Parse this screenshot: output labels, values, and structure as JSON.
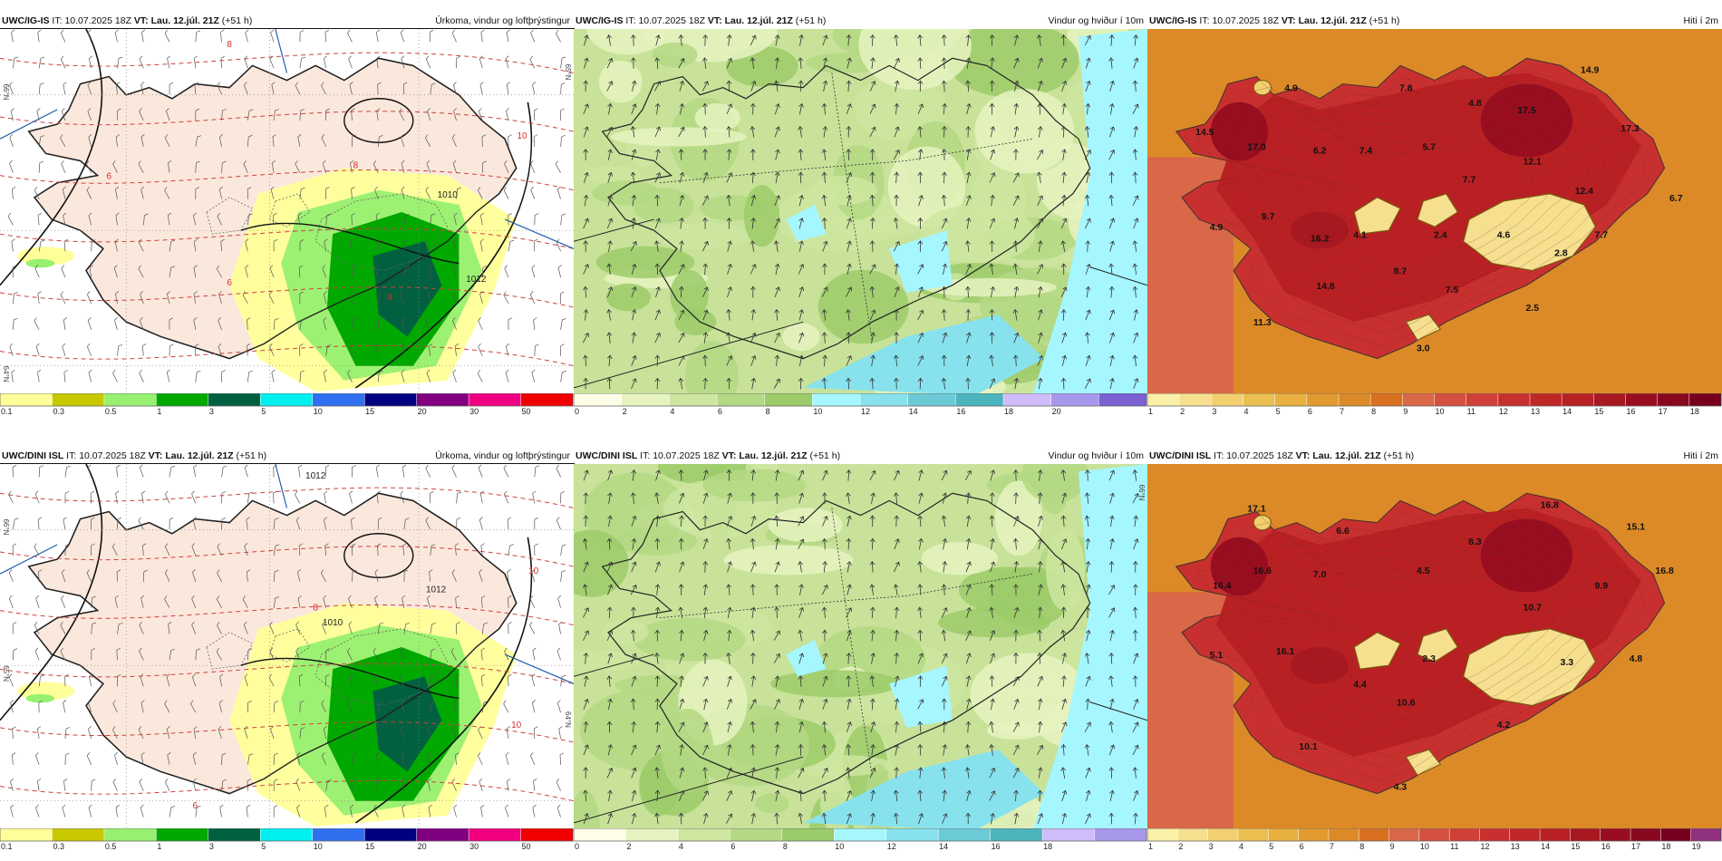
{
  "panels": [
    {
      "id": "p1",
      "source": "UWC/IG-IS",
      "it_label": "IT:",
      "it_value": "10.07.2025 18Z",
      "vt_label": "VT: Lau. 12.júl. 21Z",
      "lead": "(+51 h)",
      "title_right": "Úrkoma, vindur og loftþrýstingur",
      "kind": "precip",
      "colorbar": {
        "colors": [
          "#ffff99",
          "#c8c800",
          "#98f070",
          "#00a800",
          "#006040",
          "#00f0f0",
          "#3070f0",
          "#000080",
          "#800080",
          "#f00080",
          "#f00000"
        ],
        "ticks": [
          "0.1",
          "0.3",
          "0.5",
          "1",
          "3",
          "5",
          "10",
          "15",
          "20",
          "30",
          "50"
        ]
      },
      "map_labels": [
        {
          "t": "8",
          "c": "#d03030"
        },
        {
          "t": "10",
          "c": "#d03030"
        },
        {
          "t": "8",
          "c": "#d03030"
        },
        {
          "t": "6",
          "c": "#d03030"
        },
        {
          "t": "6",
          "c": "#d03030"
        },
        {
          "t": "8",
          "c": "#d03030"
        },
        {
          "t": "1012",
          "c": "#222"
        },
        {
          "t": "1010",
          "c": "#222"
        },
        {
          "t": "66°N",
          "c": "#444"
        },
        {
          "t": "64°N",
          "c": "#444"
        },
        {
          "t": "65°N",
          "c": "#444"
        }
      ]
    },
    {
      "id": "p2",
      "source": "UWC/IG-IS",
      "it_label": "IT:",
      "it_value": "10.07.2025 18Z",
      "vt_label": "VT: Lau. 12.júl. 21Z",
      "lead": "(+51 h)",
      "title_right": "Vindur og hviður í 10m",
      "kind": "wind",
      "colorbar": {
        "colors": [
          "#fdfde8",
          "#e6f3c0",
          "#cde6a0",
          "#b4d884",
          "#9ccb6a",
          "#a6f6ff",
          "#88e2ee",
          "#6ccad6",
          "#4cb4bc",
          "#d0bcfa",
          "#a898ec",
          "#7a60d0"
        ],
        "ticks": [
          "0",
          "2",
          "4",
          "6",
          "8",
          "10",
          "12",
          "14",
          "16",
          "18",
          "20"
        ]
      },
      "map_labels": []
    },
    {
      "id": "p3",
      "source": "UWC/IG-IS",
      "it_label": "IT:",
      "it_value": "10.07.2025 18Z",
      "vt_label": "VT: Lau. 12.júl. 21Z",
      "lead": "(+51 h)",
      "title_right": "Hiti í 2m",
      "kind": "temp",
      "colorbar": {
        "colors": [
          "#fbf0a8",
          "#f6e090",
          "#f2d070",
          "#ecc050",
          "#e8b040",
          "#e09a30",
          "#dc8a28",
          "#d87020",
          "#d86848",
          "#d45040",
          "#d04038",
          "#c83030",
          "#c02828",
          "#b82024",
          "#a81820",
          "#980e20",
          "#880820",
          "#78001e"
        ],
        "ticks": [
          "1",
          "2",
          "3",
          "4",
          "5",
          "6",
          "7",
          "8",
          "9",
          "10",
          "11",
          "12",
          "13",
          "14",
          "15",
          "16",
          "17",
          "18"
        ]
      },
      "map_labels": [
        {
          "t": "4.9"
        },
        {
          "t": "7.8"
        },
        {
          "t": "4.8"
        },
        {
          "t": "14.9"
        },
        {
          "t": "14.5"
        },
        {
          "t": "17.0"
        },
        {
          "t": "6.2"
        },
        {
          "t": "7.4"
        },
        {
          "t": "5.7"
        },
        {
          "t": "17.5"
        },
        {
          "t": "17.3"
        },
        {
          "t": "12.1"
        },
        {
          "t": "7.7"
        },
        {
          "t": "12.4"
        },
        {
          "t": "6.7"
        },
        {
          "t": "9.7"
        },
        {
          "t": "4.9"
        },
        {
          "t": "16.2"
        },
        {
          "t": "4.1"
        },
        {
          "t": "2.4"
        },
        {
          "t": "4.6"
        },
        {
          "t": "7.7"
        },
        {
          "t": "2.8"
        },
        {
          "t": "8.7"
        },
        {
          "t": "14.8"
        },
        {
          "t": "7.5"
        },
        {
          "t": "2.5"
        },
        {
          "t": "11.3"
        },
        {
          "t": "3.0"
        }
      ]
    },
    {
      "id": "p4",
      "source": "UWC/DINI ISL",
      "it_label": "IT:",
      "it_value": "10.07.2025 18Z",
      "vt_label": "VT: Lau. 12.júl. 21Z",
      "lead": "(+51 h)",
      "title_right": "Úrkoma, vindur og loftþrýstingur",
      "kind": "precip",
      "colorbar": {
        "colors": [
          "#ffff99",
          "#c8c800",
          "#98f070",
          "#00a800",
          "#006040",
          "#00f0f0",
          "#3070f0",
          "#000080",
          "#800080",
          "#f00080",
          "#f00000"
        ],
        "ticks": [
          "0.1",
          "0.3",
          "0.5",
          "1",
          "3",
          "5",
          "10",
          "15",
          "20",
          "30",
          "50"
        ]
      },
      "map_labels": [
        {
          "t": "1012",
          "c": "#222"
        },
        {
          "t": "1010",
          "c": "#222"
        },
        {
          "t": "8",
          "c": "#d03030"
        },
        {
          "t": "10",
          "c": "#d03030"
        },
        {
          "t": "1012",
          "c": "#222"
        },
        {
          "t": "10",
          "c": "#d03030"
        },
        {
          "t": "6",
          "c": "#d03030"
        },
        {
          "t": "66°N",
          "c": "#444"
        },
        {
          "t": "65°N",
          "c": "#444"
        },
        {
          "t": "64°N",
          "c": "#444"
        }
      ]
    },
    {
      "id": "p5",
      "source": "UWC/DINI ISL",
      "it_label": "IT:",
      "it_value": "10.07.2025 18Z",
      "vt_label": "VT: Lau. 12.júl. 21Z",
      "lead": "(+51 h)",
      "title_right": "Vindur og hviður í 10m",
      "kind": "wind",
      "colorbar": {
        "colors": [
          "#fdfde8",
          "#e6f3c0",
          "#cde6a0",
          "#b4d884",
          "#9ccb6a",
          "#a6f6ff",
          "#88e2ee",
          "#6ccad6",
          "#4cb4bc",
          "#d0bcfa",
          "#a898ec"
        ],
        "ticks": [
          "0",
          "2",
          "4",
          "6",
          "8",
          "10",
          "12",
          "14",
          "16",
          "18"
        ]
      },
      "map_labels": [
        {
          "t": "66°N",
          "c": "#444"
        }
      ]
    },
    {
      "id": "p6",
      "source": "UWC/DINI ISL",
      "it_label": "IT:",
      "it_value": "10.07.2025 18Z",
      "vt_label": "VT: Lau. 12.júl. 21Z",
      "lead": "(+51 h)",
      "title_right": "Hiti í 2m",
      "kind": "temp",
      "colorbar": {
        "colors": [
          "#fbf0a8",
          "#f6e090",
          "#f2d070",
          "#ecc050",
          "#e8b040",
          "#e09a30",
          "#dc8a28",
          "#d87020",
          "#d86848",
          "#d45040",
          "#d04038",
          "#c83030",
          "#c02828",
          "#b82024",
          "#a81820",
          "#980e20",
          "#880820",
          "#78001e",
          "#903080"
        ],
        "ticks": [
          "1",
          "2",
          "3",
          "4",
          "5",
          "6",
          "7",
          "8",
          "9",
          "10",
          "11",
          "12",
          "13",
          "14",
          "15",
          "16",
          "17",
          "18",
          "19"
        ]
      },
      "map_labels": [
        {
          "t": "17.1"
        },
        {
          "t": "6.6"
        },
        {
          "t": "16.8"
        },
        {
          "t": "8.3"
        },
        {
          "t": "15.1"
        },
        {
          "t": "7.0"
        },
        {
          "t": "4.5"
        },
        {
          "t": "16.4"
        },
        {
          "t": "16.6"
        },
        {
          "t": "9.9"
        },
        {
          "t": "16.8"
        },
        {
          "t": "10.7"
        },
        {
          "t": "5.1"
        },
        {
          "t": "16.1"
        },
        {
          "t": "2.3"
        },
        {
          "t": "3.3"
        },
        {
          "t": "4.8"
        },
        {
          "t": "4.4"
        },
        {
          "t": "10.6"
        },
        {
          "t": "4.2"
        },
        {
          "t": "10.1"
        },
        {
          "t": "4.3"
        }
      ]
    }
  ]
}
